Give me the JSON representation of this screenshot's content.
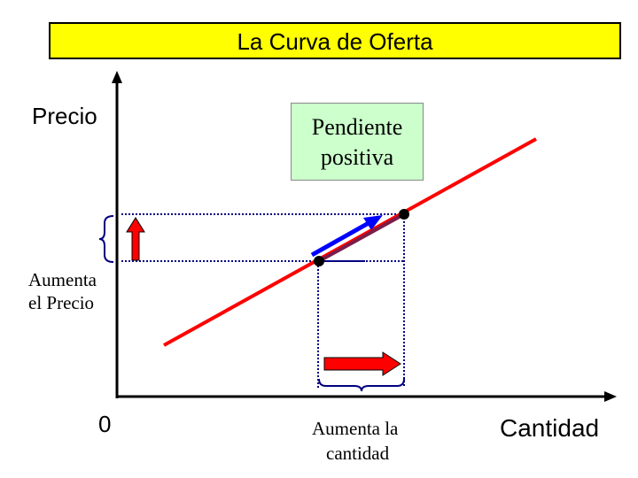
{
  "title": "La Curva de Oferta",
  "axes": {
    "y_label": "Precio",
    "x_label": "Cantidad",
    "origin_label": "0"
  },
  "callout": {
    "line1": "Pendiente",
    "line2": "positiva"
  },
  "annotations": {
    "price_line1": "Aumenta",
    "price_line2": "el Precio",
    "quantity_line1": "Aumenta la",
    "quantity_line2": "cantidad"
  },
  "colors": {
    "title_bg": "#ffff00",
    "supply_curve": "#ff0000",
    "slope_arrow": "#0000ff",
    "callout_bg": "#ccffcc",
    "dotted_guides": "#000080"
  }
}
